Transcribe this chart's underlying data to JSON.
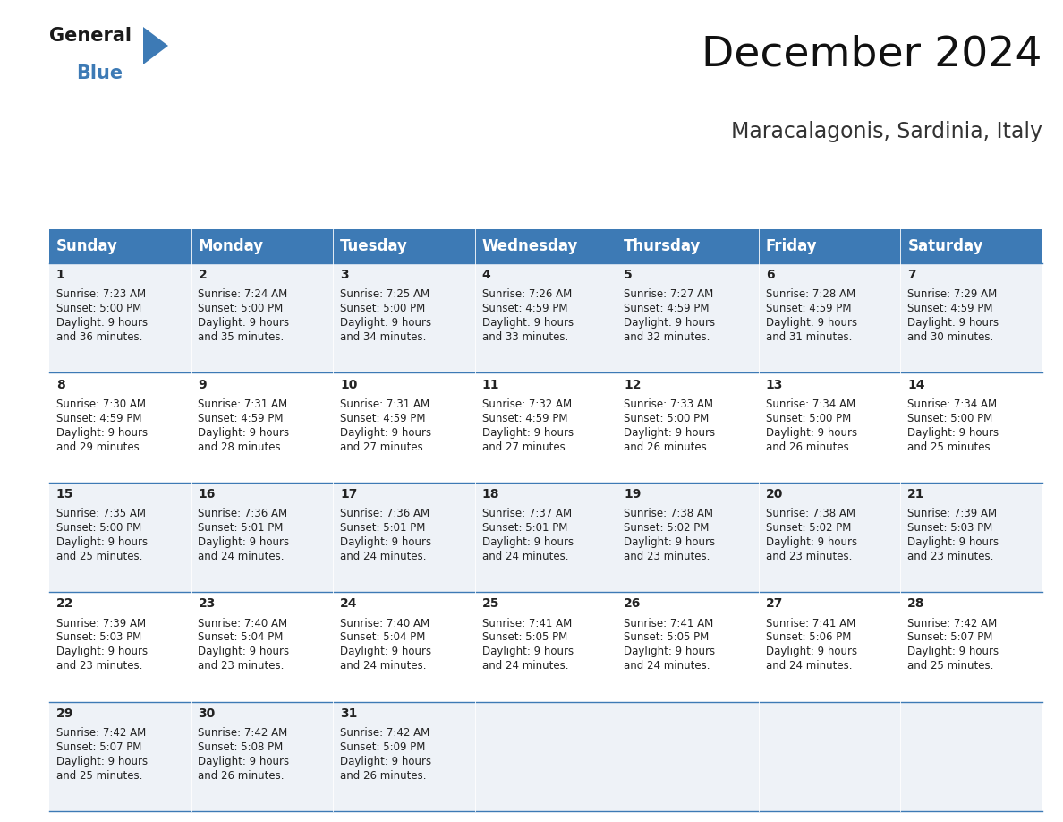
{
  "title": "December 2024",
  "subtitle": "Maracalagonis, Sardinia, Italy",
  "header_bg": "#3d7ab5",
  "header_text": "#ffffff",
  "row_bg_light": "#eef2f7",
  "row_bg_white": "#ffffff",
  "cell_border_color": "#3d7ab5",
  "text_color": "#222222",
  "days_of_week": [
    "Sunday",
    "Monday",
    "Tuesday",
    "Wednesday",
    "Thursday",
    "Friday",
    "Saturday"
  ],
  "calendar": [
    [
      {
        "day": 1,
        "sunrise": "7:23 AM",
        "sunset": "5:00 PM",
        "daylight": "9 hours",
        "daylight2": "and 36 minutes."
      },
      {
        "day": 2,
        "sunrise": "7:24 AM",
        "sunset": "5:00 PM",
        "daylight": "9 hours",
        "daylight2": "and 35 minutes."
      },
      {
        "day": 3,
        "sunrise": "7:25 AM",
        "sunset": "5:00 PM",
        "daylight": "9 hours",
        "daylight2": "and 34 minutes."
      },
      {
        "day": 4,
        "sunrise": "7:26 AM",
        "sunset": "4:59 PM",
        "daylight": "9 hours",
        "daylight2": "and 33 minutes."
      },
      {
        "day": 5,
        "sunrise": "7:27 AM",
        "sunset": "4:59 PM",
        "daylight": "9 hours",
        "daylight2": "and 32 minutes."
      },
      {
        "day": 6,
        "sunrise": "7:28 AM",
        "sunset": "4:59 PM",
        "daylight": "9 hours",
        "daylight2": "and 31 minutes."
      },
      {
        "day": 7,
        "sunrise": "7:29 AM",
        "sunset": "4:59 PM",
        "daylight": "9 hours",
        "daylight2": "and 30 minutes."
      }
    ],
    [
      {
        "day": 8,
        "sunrise": "7:30 AM",
        "sunset": "4:59 PM",
        "daylight": "9 hours",
        "daylight2": "and 29 minutes."
      },
      {
        "day": 9,
        "sunrise": "7:31 AM",
        "sunset": "4:59 PM",
        "daylight": "9 hours",
        "daylight2": "and 28 minutes."
      },
      {
        "day": 10,
        "sunrise": "7:31 AM",
        "sunset": "4:59 PM",
        "daylight": "9 hours",
        "daylight2": "and 27 minutes."
      },
      {
        "day": 11,
        "sunrise": "7:32 AM",
        "sunset": "4:59 PM",
        "daylight": "9 hours",
        "daylight2": "and 27 minutes."
      },
      {
        "day": 12,
        "sunrise": "7:33 AM",
        "sunset": "5:00 PM",
        "daylight": "9 hours",
        "daylight2": "and 26 minutes."
      },
      {
        "day": 13,
        "sunrise": "7:34 AM",
        "sunset": "5:00 PM",
        "daylight": "9 hours",
        "daylight2": "and 26 minutes."
      },
      {
        "day": 14,
        "sunrise": "7:34 AM",
        "sunset": "5:00 PM",
        "daylight": "9 hours",
        "daylight2": "and 25 minutes."
      }
    ],
    [
      {
        "day": 15,
        "sunrise": "7:35 AM",
        "sunset": "5:00 PM",
        "daylight": "9 hours",
        "daylight2": "and 25 minutes."
      },
      {
        "day": 16,
        "sunrise": "7:36 AM",
        "sunset": "5:01 PM",
        "daylight": "9 hours",
        "daylight2": "and 24 minutes."
      },
      {
        "day": 17,
        "sunrise": "7:36 AM",
        "sunset": "5:01 PM",
        "daylight": "9 hours",
        "daylight2": "and 24 minutes."
      },
      {
        "day": 18,
        "sunrise": "7:37 AM",
        "sunset": "5:01 PM",
        "daylight": "9 hours",
        "daylight2": "and 24 minutes."
      },
      {
        "day": 19,
        "sunrise": "7:38 AM",
        "sunset": "5:02 PM",
        "daylight": "9 hours",
        "daylight2": "and 23 minutes."
      },
      {
        "day": 20,
        "sunrise": "7:38 AM",
        "sunset": "5:02 PM",
        "daylight": "9 hours",
        "daylight2": "and 23 minutes."
      },
      {
        "day": 21,
        "sunrise": "7:39 AM",
        "sunset": "5:03 PM",
        "daylight": "9 hours",
        "daylight2": "and 23 minutes."
      }
    ],
    [
      {
        "day": 22,
        "sunrise": "7:39 AM",
        "sunset": "5:03 PM",
        "daylight": "9 hours",
        "daylight2": "and 23 minutes."
      },
      {
        "day": 23,
        "sunrise": "7:40 AM",
        "sunset": "5:04 PM",
        "daylight": "9 hours",
        "daylight2": "and 23 minutes."
      },
      {
        "day": 24,
        "sunrise": "7:40 AM",
        "sunset": "5:04 PM",
        "daylight": "9 hours",
        "daylight2": "and 24 minutes."
      },
      {
        "day": 25,
        "sunrise": "7:41 AM",
        "sunset": "5:05 PM",
        "daylight": "9 hours",
        "daylight2": "and 24 minutes."
      },
      {
        "day": 26,
        "sunrise": "7:41 AM",
        "sunset": "5:05 PM",
        "daylight": "9 hours",
        "daylight2": "and 24 minutes."
      },
      {
        "day": 27,
        "sunrise": "7:41 AM",
        "sunset": "5:06 PM",
        "daylight": "9 hours",
        "daylight2": "and 24 minutes."
      },
      {
        "day": 28,
        "sunrise": "7:42 AM",
        "sunset": "5:07 PM",
        "daylight": "9 hours",
        "daylight2": "and 25 minutes."
      }
    ],
    [
      {
        "day": 29,
        "sunrise": "7:42 AM",
        "sunset": "5:07 PM",
        "daylight": "9 hours",
        "daylight2": "and 25 minutes."
      },
      {
        "day": 30,
        "sunrise": "7:42 AM",
        "sunset": "5:08 PM",
        "daylight": "9 hours",
        "daylight2": "and 26 minutes."
      },
      {
        "day": 31,
        "sunrise": "7:42 AM",
        "sunset": "5:09 PM",
        "daylight": "9 hours",
        "daylight2": "and 26 minutes."
      },
      null,
      null,
      null,
      null
    ]
  ],
  "logo_arrow_color": "#3d7ab5",
  "title_fontsize": 34,
  "subtitle_fontsize": 17,
  "header_fontsize": 12,
  "day_num_fontsize": 10,
  "cell_text_fontsize": 8.5
}
